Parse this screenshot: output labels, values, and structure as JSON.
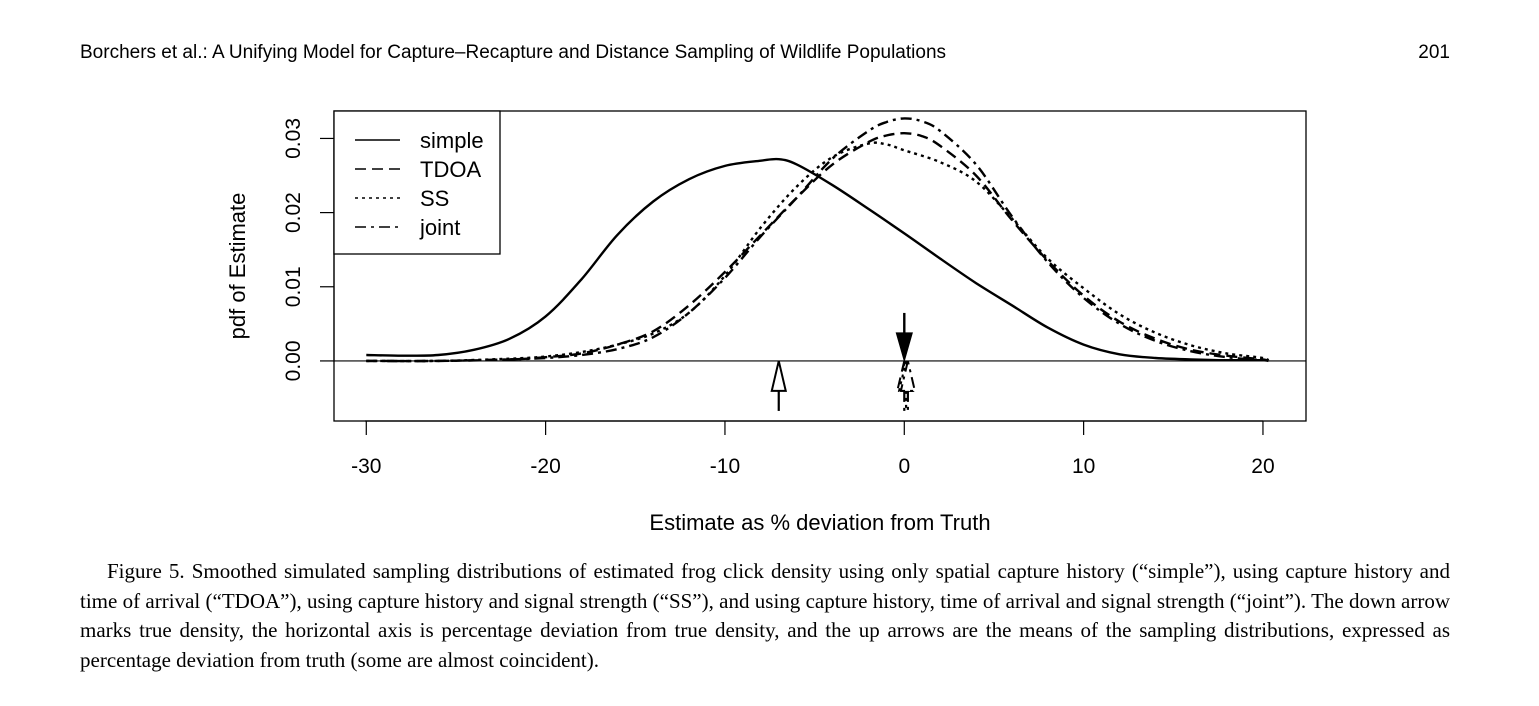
{
  "header": {
    "running_title": "Borchers et al.: A Unifying Model for Capture–Recapture and Distance Sampling of Wildlife Populations",
    "page_number": "201"
  },
  "chart_data": {
    "type": "line",
    "title": "",
    "xlabel": "Estimate as % deviation from Truth",
    "ylabel": "pdf of Estimate",
    "xlim": [
      -31.8,
      22.4
    ],
    "ylim": [
      -0.0081,
      0.0337
    ],
    "x_ticks": [
      -30,
      -20,
      -10,
      0,
      10,
      20
    ],
    "x_tick_labels": [
      "-30",
      "-20",
      "-10",
      "0",
      "10",
      "20"
    ],
    "y_ticks": [
      0,
      0.01,
      0.02,
      0.03
    ],
    "y_tick_labels": [
      "0.00",
      "0.01",
      "0.02",
      "0.03"
    ],
    "legend_position": "top-left",
    "grid": false,
    "baseline_y": 0,
    "series": [
      {
        "name": "simple",
        "dash": "solid",
        "x": [
          -30,
          -28,
          -26,
          -24,
          -22,
          -20,
          -18,
          -16,
          -14,
          -12,
          -10,
          -8,
          -7,
          -6,
          -4,
          -2,
          0,
          2,
          4,
          6,
          8,
          10,
          12,
          14,
          16,
          18,
          20,
          20.3
        ],
        "y": [
          0.0008,
          0.0007,
          0.0008,
          0.0015,
          0.003,
          0.006,
          0.011,
          0.017,
          0.0215,
          0.0245,
          0.0263,
          0.027,
          0.0272,
          0.0265,
          0.0237,
          0.0205,
          0.0172,
          0.0138,
          0.0105,
          0.0075,
          0.0045,
          0.0022,
          0.0009,
          0.0004,
          0.0002,
          0.0001,
          0.0001,
          0.0001
        ]
      },
      {
        "name": "TDOA",
        "dash": "dashed",
        "x": [
          -30,
          -26,
          -22,
          -20,
          -18,
          -16,
          -14,
          -12,
          -10,
          -8,
          -6,
          -4,
          -2,
          -1,
          0,
          1,
          2,
          4,
          6,
          8,
          10,
          12,
          14,
          16,
          18,
          20,
          20.3
        ],
        "y": [
          0,
          0,
          0.0002,
          0.0005,
          0.001,
          0.0022,
          0.004,
          0.0075,
          0.012,
          0.017,
          0.022,
          0.0265,
          0.0295,
          0.0304,
          0.0307,
          0.0303,
          0.029,
          0.025,
          0.019,
          0.0135,
          0.0088,
          0.0053,
          0.003,
          0.0015,
          0.0007,
          0.0002,
          0
        ]
      },
      {
        "name": "SS",
        "dash": "dotted",
        "x": [
          -30,
          -26,
          -22,
          -20,
          -18,
          -16,
          -14,
          -12,
          -10,
          -8,
          -6,
          -4,
          -2,
          -1,
          0,
          2,
          4,
          6,
          8,
          10,
          12,
          14,
          16,
          18,
          20,
          20.3
        ],
        "y": [
          0,
          0,
          0.0003,
          0.0006,
          0.0012,
          0.0022,
          0.0037,
          0.0065,
          0.0115,
          0.018,
          0.0235,
          0.0275,
          0.0293,
          0.0292,
          0.0284,
          0.0268,
          0.0242,
          0.0192,
          0.0138,
          0.0098,
          0.0063,
          0.0038,
          0.0021,
          0.001,
          0.0004,
          0
        ]
      },
      {
        "name": "joint",
        "dash": "dashdot",
        "x": [
          -30,
          -26,
          -22,
          -20,
          -18,
          -16,
          -14,
          -12,
          -10,
          -8,
          -6,
          -4,
          -2,
          -1,
          0,
          1,
          2,
          4,
          6,
          8,
          10,
          12,
          14,
          16,
          18,
          20,
          20.3
        ],
        "y": [
          0,
          0,
          0.0002,
          0.0004,
          0.0008,
          0.0016,
          0.0032,
          0.0065,
          0.0112,
          0.0168,
          0.022,
          0.0273,
          0.031,
          0.0322,
          0.0327,
          0.0323,
          0.031,
          0.0265,
          0.0195,
          0.0133,
          0.0085,
          0.005,
          0.0027,
          0.0013,
          0.0005,
          0.0001,
          0
        ]
      }
    ],
    "annotations": {
      "down_arrow": {
        "label": "true density",
        "x": 0
      },
      "up_arrows": [
        {
          "label": "simple mean",
          "x": -7,
          "dash": "solid"
        },
        {
          "label": "TDOA mean",
          "x": 0,
          "dash": "dashed"
        },
        {
          "label": "SS mean",
          "x": 0.1,
          "dash": "dotted"
        },
        {
          "label": "joint mean",
          "x": 0.2,
          "dash": "dashdot"
        }
      ]
    }
  },
  "caption": {
    "text": "Figure 5.  Smoothed simulated sampling distributions of estimated frog click density using only spatial capture history (“simple”), using capture history and time of arrival (“TDOA”), using capture history and signal strength (“SS”), and using capture history, time of arrival and signal strength (“joint”). The down arrow marks true density, the horizontal axis is percentage deviation from true density, and the up arrows are the means of the sampling distributions, expressed as percentage deviation from truth (some are almost coincident)."
  }
}
